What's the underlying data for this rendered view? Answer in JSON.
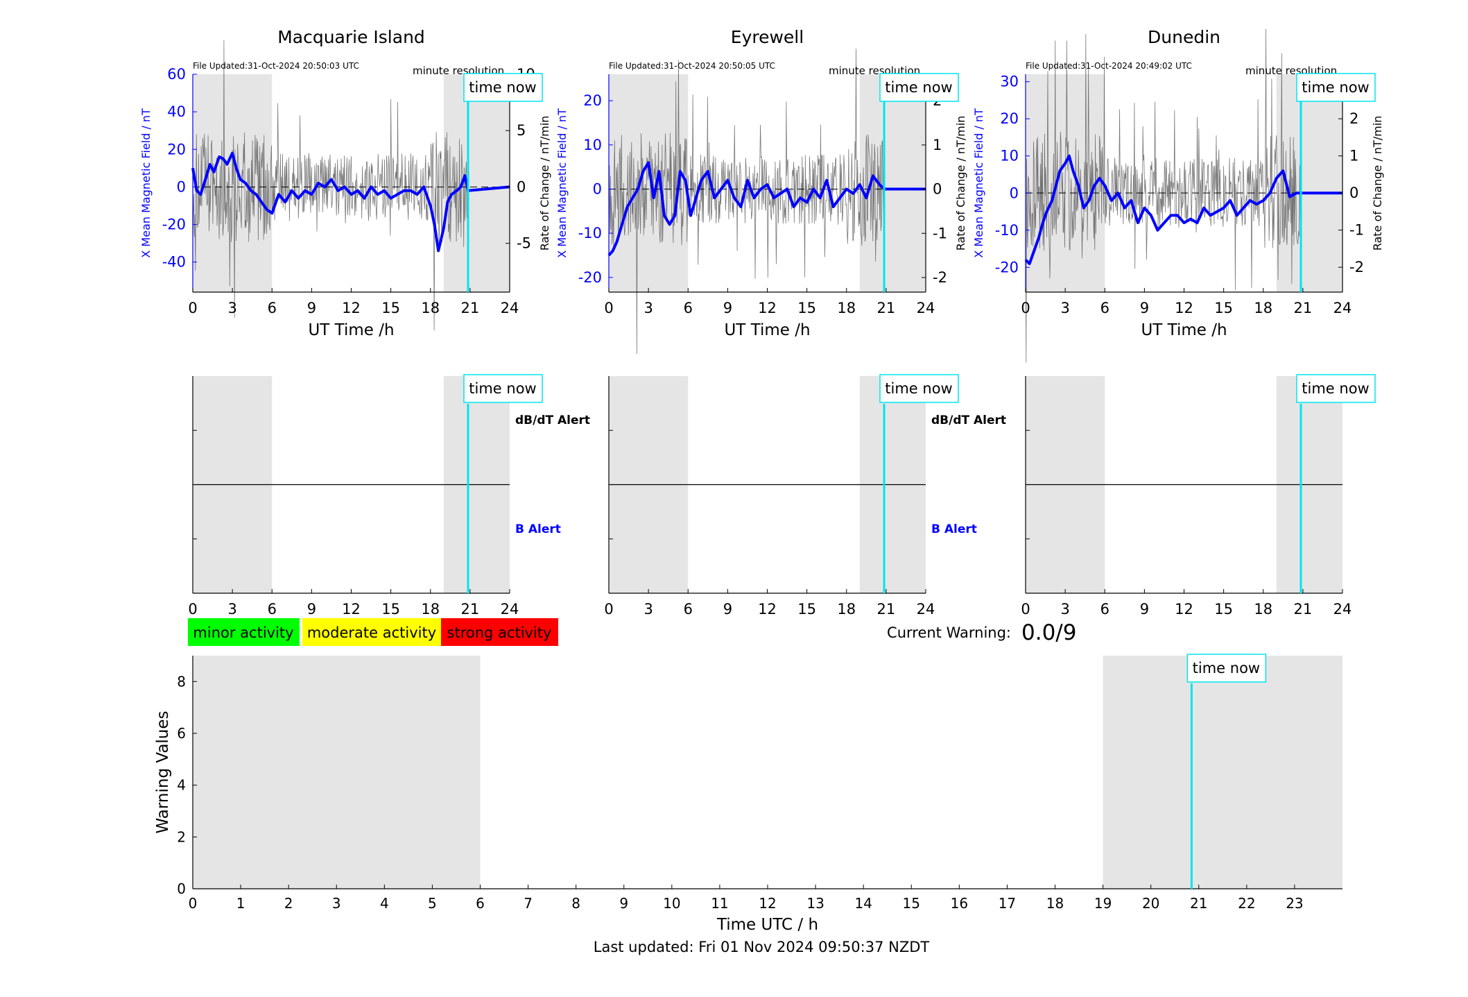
{
  "footer": {
    "last_updated": "Last updated: Fri 01 Nov 2024 09:50:37 NZDT"
  },
  "legend": {
    "minor": "minor activity",
    "moderate": "moderate activity",
    "strong": "strong activity",
    "colors": {
      "minor": "#00ff00",
      "moderate": "#ffff00",
      "strong": "#ff0000"
    }
  },
  "current_warning": {
    "label": "Current Warning:",
    "value": "0.0/9"
  },
  "colors": {
    "series": "#0000ff",
    "now_line": "#00e5ee",
    "shade": "#e5e5e5",
    "rate": "#555555"
  },
  "chart_data": [
    {
      "type": "line",
      "title": "Macquarie Island",
      "file_updated": "File Updated:31-Oct-2024 20:50:03 UTC",
      "resolution": "minute resolution",
      "now_label": "time now",
      "xlabel": "UT Time /h",
      "ylabel": "X Mean Magnetic Field / nT",
      "ylabel_right": "Rate of Change / nT/min",
      "xlim": [
        0,
        24
      ],
      "ylim": [
        -56,
        60
      ],
      "ylim_right": [
        -9.33,
        10
      ],
      "xticks": [
        0,
        3,
        6,
        9,
        12,
        15,
        18,
        21,
        24
      ],
      "yticks": [
        -40,
        -20,
        0,
        20,
        40,
        60
      ],
      "yticks_right": [
        -5,
        0,
        5,
        10
      ],
      "shaded": [
        [
          0,
          6
        ],
        [
          19,
          24
        ]
      ],
      "now": 20.85,
      "series": [
        {
          "name": "",
          "x": [
            0,
            0.3,
            0.6,
            1,
            1.3,
            1.6,
            2,
            2.3,
            2.6,
            3,
            3.3,
            3.6,
            4,
            4.4,
            4.8,
            5.2,
            5.6,
            6,
            6.5,
            7,
            7.5,
            8,
            8.5,
            9,
            9.5,
            10,
            10.5,
            11,
            11.5,
            12,
            12.5,
            13,
            13.5,
            14,
            14.5,
            15,
            15.5,
            16,
            16.5,
            17,
            17.5,
            18,
            18.3,
            18.6,
            19,
            19.3,
            19.6,
            20,
            20.3,
            20.6,
            20.85,
            24
          ],
          "values": [
            10,
            -2,
            -4,
            5,
            12,
            8,
            16,
            15,
            12,
            18,
            10,
            4,
            2,
            -2,
            -4,
            -8,
            -12,
            -14,
            -4,
            -8,
            -2,
            -6,
            -2,
            -4,
            2,
            0,
            4,
            -2,
            0,
            -4,
            -2,
            -6,
            0,
            -4,
            -2,
            -6,
            -4,
            -2,
            -2,
            -4,
            0,
            -10,
            -20,
            -34,
            -22,
            -8,
            -4,
            -2,
            0,
            6,
            -2,
            0
          ]
        }
      ]
    },
    {
      "type": "line",
      "title": "Eyrewell",
      "file_updated": "File Updated:31-Oct-2024 20:50:05 UTC",
      "resolution": "minute resolution",
      "now_label": "time now",
      "xlabel": "UT Time /h",
      "ylabel": "X Mean Magnetic Field / nT",
      "ylabel_right": "Rate of Change / nT/min",
      "xlim": [
        0,
        24
      ],
      "ylim": [
        -23.33,
        26
      ],
      "ylim_right": [
        -2.33,
        2.6
      ],
      "xticks": [
        0,
        3,
        6,
        9,
        12,
        15,
        18,
        21,
        24
      ],
      "yticks": [
        -20,
        -10,
        0,
        10,
        20
      ],
      "yticks_right": [
        -2,
        -1,
        0,
        1,
        2
      ],
      "shaded": [
        [
          0,
          6
        ],
        [
          19,
          24
        ]
      ],
      "now": 20.85,
      "series": [
        {
          "name": "",
          "x": [
            0,
            0.3,
            0.6,
            1,
            1.4,
            1.8,
            2.2,
            2.6,
            3,
            3.4,
            3.8,
            4.2,
            4.6,
            5,
            5.4,
            5.8,
            6.2,
            6.6,
            7,
            7.5,
            8,
            8.5,
            9,
            9.5,
            10,
            10.5,
            11,
            11.5,
            12,
            12.5,
            13,
            13.5,
            14,
            14.5,
            15,
            15.5,
            16,
            16.5,
            17,
            17.5,
            18,
            18.5,
            19,
            19.5,
            20,
            20.5,
            20.85,
            24
          ],
          "values": [
            -15,
            -14,
            -12,
            -8,
            -4,
            -2,
            0,
            4,
            6,
            -2,
            4,
            -6,
            -8,
            -6,
            4,
            2,
            -6,
            -2,
            2,
            4,
            -2,
            0,
            2,
            -2,
            -4,
            2,
            -2,
            0,
            1,
            -2,
            -1,
            0,
            -4,
            -2,
            -3,
            0,
            -2,
            2,
            -4,
            -2,
            0,
            -1,
            1,
            -2,
            3,
            1,
            0,
            0
          ]
        }
      ]
    },
    {
      "type": "line",
      "title": "Dunedin",
      "file_updated": "File Updated:31-Oct-2024 20:49:02 UTC",
      "resolution": "minute resolution",
      "now_label": "time now",
      "xlabel": "UT Time /h",
      "ylabel": "X Mean Magnetic Field / nT",
      "ylabel_right": "Rate of Change / nT/min",
      "xlim": [
        0,
        24
      ],
      "ylim": [
        -26.67,
        32
      ],
      "ylim_right": [
        -2.67,
        3.2
      ],
      "xticks": [
        0,
        3,
        6,
        9,
        12,
        15,
        18,
        21,
        24
      ],
      "yticks": [
        -20,
        -10,
        0,
        10,
        20,
        30
      ],
      "yticks_right": [
        -2,
        -1,
        0,
        1,
        2,
        3
      ],
      "shaded": [
        [
          0,
          6
        ],
        [
          19,
          24
        ]
      ],
      "now": 20.85,
      "series": [
        {
          "name": "",
          "x": [
            0,
            0.3,
            0.6,
            1,
            1.3,
            1.6,
            2,
            2.3,
            2.6,
            3,
            3.3,
            3.6,
            4,
            4.4,
            4.8,
            5.2,
            5.6,
            6,
            6.5,
            7,
            7.5,
            8,
            8.5,
            9,
            9.5,
            10,
            10.5,
            11,
            11.5,
            12,
            12.5,
            13,
            13.5,
            14,
            14.5,
            15,
            15.5,
            16,
            16.5,
            17,
            17.5,
            18,
            18.5,
            19,
            19.5,
            20,
            20.5,
            20.85,
            24
          ],
          "values": [
            -18,
            -19,
            -16,
            -12,
            -8,
            -5,
            -2,
            2,
            6,
            8,
            10,
            6,
            2,
            -4,
            -2,
            2,
            4,
            2,
            -2,
            0,
            -4,
            -2,
            -8,
            -4,
            -6,
            -10,
            -8,
            -6,
            -6,
            -8,
            -7,
            -8,
            -4,
            -6,
            -5,
            -4,
            -2,
            -6,
            -4,
            -2,
            -3,
            -2,
            0,
            4,
            6,
            -1,
            0,
            0,
            0
          ]
        }
      ]
    }
  ],
  "alerts": {
    "dbdt_label": "dB/dT Alert",
    "b_label": "B Alert",
    "now_label": "time now",
    "xticks": [
      0,
      3,
      6,
      9,
      12,
      15,
      18,
      21,
      24
    ]
  },
  "warning_chart": {
    "type": "bar",
    "xlabel": "Time UTC / h",
    "ylabel": "Warning Values",
    "xlim": [
      0,
      24
    ],
    "ylim": [
      0,
      9
    ],
    "xticks": [
      0,
      1,
      2,
      3,
      4,
      5,
      6,
      7,
      8,
      9,
      10,
      11,
      12,
      13,
      14,
      15,
      16,
      17,
      18,
      19,
      20,
      21,
      22,
      23
    ],
    "yticks": [
      0,
      2,
      4,
      6,
      8
    ],
    "shaded": [
      [
        0,
        6
      ],
      [
        19,
        24
      ]
    ],
    "now": 20.85,
    "now_label": "time now",
    "values": []
  }
}
